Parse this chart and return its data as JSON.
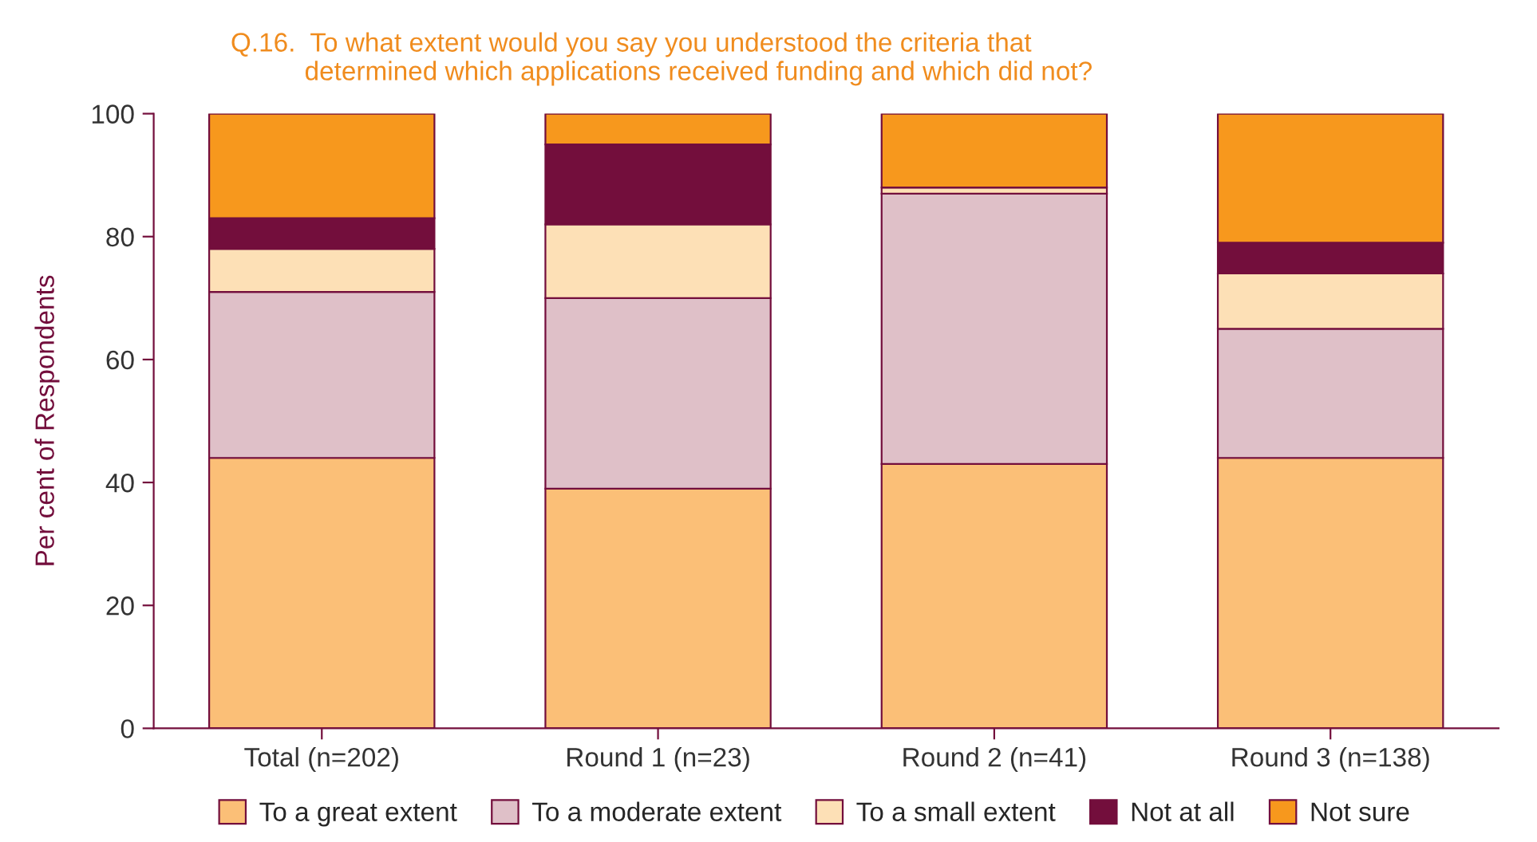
{
  "chart_data": {
    "type": "bar",
    "title": "Q.16.  To what extent would you say you understood the criteria that\n          determined which applications received funding and which did not?",
    "ylabel": "Per cent of Respondents",
    "categories": [
      "Total (n=202)",
      "Round 1 (n=23)",
      "Round 2 (n=41)",
      "Round 3 (n=138)"
    ],
    "stacked": true,
    "series": [
      {
        "name": "To a great extent",
        "color": "#fbbf77",
        "values": [
          44,
          39,
          43,
          44
        ]
      },
      {
        "name": "To a moderate extent",
        "color": "#dfc0c8",
        "values": [
          27,
          31,
          44,
          21
        ]
      },
      {
        "name": "To a small extent",
        "color": "#fde0b6",
        "values": [
          7,
          12,
          1,
          9
        ]
      },
      {
        "name": "Not at all",
        "color": "#730e3c",
        "values": [
          5,
          13,
          0,
          5
        ]
      },
      {
        "name": "Not sure",
        "color": "#f7981d",
        "values": [
          17,
          5,
          12,
          21
        ]
      }
    ],
    "ylim": [
      0,
      100
    ],
    "yticks": [
      0,
      20,
      40,
      60,
      80,
      100
    ],
    "grid": false,
    "legend": "bottom"
  }
}
